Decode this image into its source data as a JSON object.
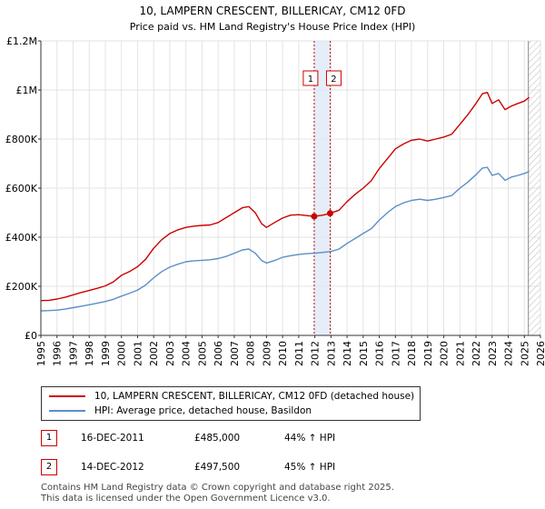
{
  "chart_data": {
    "type": "line",
    "title": "10, LAMPERN CRESCENT, BILLERICAY, CM12 0FD",
    "subtitle": "Price paid vs. HM Land Registry's House Price Index (HPI)",
    "xlabel": "",
    "ylabel": "",
    "xlim": [
      1995,
      2026
    ],
    "ylim": [
      0,
      1200000
    ],
    "yticks": [
      0,
      200000,
      400000,
      600000,
      800000,
      1000000,
      1200000
    ],
    "ytick_labels": [
      "£0",
      "£200K",
      "£400K",
      "£600K",
      "£800K",
      "£1M",
      "£1.2M"
    ],
    "xticks": [
      1995,
      1996,
      1997,
      1998,
      1999,
      2000,
      2001,
      2002,
      2003,
      2004,
      2005,
      2006,
      2007,
      2008,
      2009,
      2010,
      2011,
      2012,
      2013,
      2014,
      2015,
      2016,
      2017,
      2018,
      2019,
      2020,
      2021,
      2022,
      2023,
      2024,
      2025,
      2026
    ],
    "grid": true,
    "future_hatch_from": 2025.25,
    "series": [
      {
        "name": "10, LAMPERN CRESCENT, BILLERICAY, CM12 0FD (detached house)",
        "color": "#cc0000",
        "x": [
          1995.0,
          1995.5,
          1996.0,
          1996.5,
          1997.0,
          1997.5,
          1998.0,
          1998.5,
          1999.0,
          1999.5,
          2000.0,
          2000.5,
          2001.0,
          2001.5,
          2002.0,
          2002.5,
          2003.0,
          2003.5,
          2004.0,
          2004.5,
          2005.0,
          2005.5,
          2006.0,
          2006.5,
          2007.0,
          2007.5,
          2007.9,
          2008.3,
          2008.7,
          2009.0,
          2009.5,
          2010.0,
          2010.5,
          2011.0,
          2011.5,
          2011.96,
          2012.5,
          2012.95,
          2013.5,
          2014.0,
          2014.5,
          2015.0,
          2015.5,
          2016.0,
          2016.5,
          2017.0,
          2017.5,
          2018.0,
          2018.5,
          2019.0,
          2019.5,
          2020.0,
          2020.5,
          2021.0,
          2021.5,
          2022.0,
          2022.4,
          2022.7,
          2023.0,
          2023.4,
          2023.8,
          2024.2,
          2024.6,
          2025.0,
          2025.3
        ],
        "y": [
          142000,
          143000,
          148000,
          155000,
          165000,
          175000,
          183000,
          192000,
          202000,
          218000,
          245000,
          260000,
          280000,
          310000,
          355000,
          390000,
          415000,
          430000,
          440000,
          445000,
          448000,
          450000,
          460000,
          480000,
          500000,
          520000,
          525000,
          500000,
          455000,
          440000,
          460000,
          478000,
          490000,
          492000,
          488000,
          485000,
          490000,
          497500,
          510000,
          545000,
          575000,
          600000,
          630000,
          680000,
          720000,
          760000,
          780000,
          795000,
          800000,
          792000,
          800000,
          808000,
          820000,
          860000,
          900000,
          945000,
          985000,
          990000,
          945000,
          960000,
          920000,
          935000,
          945000,
          955000,
          970000
        ]
      },
      {
        "name": "HPI: Average price, detached house, Basildon",
        "color": "#5b8fc7",
        "x": [
          1995.0,
          1995.5,
          1996.0,
          1996.5,
          1997.0,
          1997.5,
          1998.0,
          1998.5,
          1999.0,
          1999.5,
          2000.0,
          2000.5,
          2001.0,
          2001.5,
          2002.0,
          2002.5,
          2003.0,
          2003.5,
          2004.0,
          2004.5,
          2005.0,
          2005.5,
          2006.0,
          2006.5,
          2007.0,
          2007.5,
          2007.9,
          2008.3,
          2008.7,
          2009.0,
          2009.5,
          2010.0,
          2010.5,
          2011.0,
          2011.5,
          2012.0,
          2012.5,
          2013.0,
          2013.5,
          2014.0,
          2014.5,
          2015.0,
          2015.5,
          2016.0,
          2016.5,
          2017.0,
          2017.5,
          2018.0,
          2018.5,
          2019.0,
          2019.5,
          2020.0,
          2020.5,
          2021.0,
          2021.5,
          2022.0,
          2022.4,
          2022.7,
          2023.0,
          2023.4,
          2023.8,
          2024.2,
          2024.6,
          2025.0,
          2025.3
        ],
        "y": [
          100000,
          101000,
          103000,
          107000,
          113000,
          119000,
          125000,
          131000,
          138000,
          147000,
          160000,
          172000,
          185000,
          205000,
          235000,
          260000,
          278000,
          290000,
          300000,
          304000,
          306000,
          308000,
          313000,
          322000,
          335000,
          348000,
          352000,
          335000,
          305000,
          295000,
          305000,
          318000,
          325000,
          330000,
          333000,
          335000,
          338000,
          342000,
          352000,
          375000,
          395000,
          415000,
          435000,
          470000,
          500000,
          525000,
          540000,
          550000,
          555000,
          550000,
          555000,
          562000,
          570000,
          600000,
          625000,
          655000,
          682000,
          685000,
          652000,
          660000,
          632000,
          645000,
          652000,
          660000,
          668000
        ]
      }
    ],
    "markers": [
      {
        "label": "1",
        "x": 2011.96,
        "y": 485000
      },
      {
        "label": "2",
        "x": 2012.95,
        "y": 497500
      }
    ],
    "transactions": [
      {
        "num": "1",
        "date": "16-DEC-2011",
        "price": "£485,000",
        "hpi": "44% ↑ HPI"
      },
      {
        "num": "2",
        "date": "14-DEC-2012",
        "price": "£497,500",
        "hpi": "45% ↑ HPI"
      }
    ]
  },
  "footer": {
    "line1": "Contains HM Land Registry data © Crown copyright and database right 2025.",
    "line2": "This data is licensed under the Open Government Licence v3.0."
  }
}
